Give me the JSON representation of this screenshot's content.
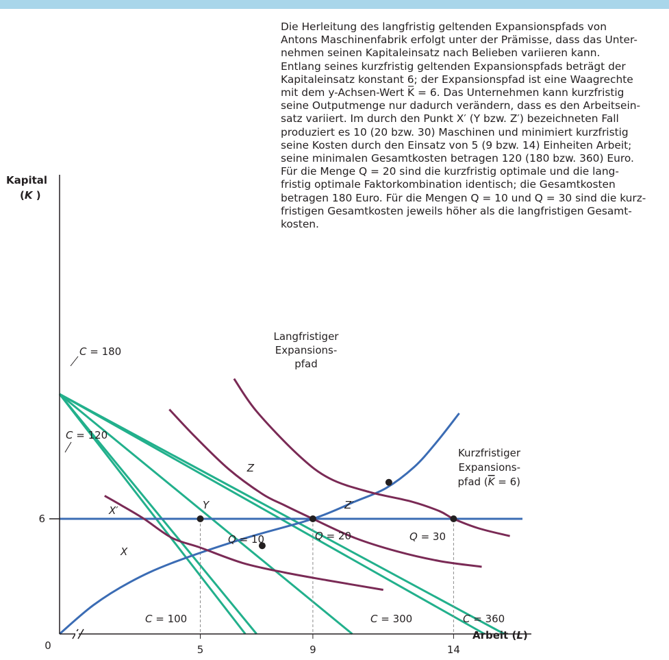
{
  "caption": {
    "lines": [
      "Die Herleitung des langfristig geltenden Expansionspfads von",
      "Antons Maschinenfabrik erfolgt unter der Prämisse, dass das Unter-",
      "nehmen seinen Kapitaleinsatz nach Belieben variieren kann.",
      "Entlang seines kurzfristig geltenden Expansionspfads beträgt der",
      "Kapitaleinsatz konstant 6; der Expansionspfad ist eine Waagrechte",
      "mit dem y-Achsen-Wert K̅ = 6. Das Unternehmen kann kurzfristig",
      "seine Outputmenge nur dadurch verändern, dass es den Arbeitsein-",
      "satz variiert. Im durch den Punkt X′ (Y bzw. Z′) bezeichneten Fall",
      "produziert es 10 (20 bzw. 30) Maschinen und minimiert kurzfristig",
      "seine Kosten durch den Einsatz von 5 (9 bzw. 14) Einheiten Arbeit;",
      "seine minimalen Gesamtkosten betragen 120 (180 bzw. 360) Euro.",
      "Für die Menge Q = 20 sind die kurzfristig optimale und die lang-",
      "fristig optimale Faktorkombination identisch; die Gesamtkosten",
      "betragen 180 Euro. Für die Mengen Q = 10 und Q = 30 sind die kurz-",
      "fristigen Gesamtkosten jeweils höher als die langfristigen Gesamt-",
      "kosten."
    ]
  },
  "colors": {
    "top_band": "#a9d6ea",
    "isocost": "#22b08c",
    "isoquant": "#7a2a55",
    "expansion_path": "#3b6cb4",
    "axis": "#231f20",
    "dashed": "#8a8a8a"
  },
  "chart_data": {
    "type": "line",
    "xlabel": "Arbeit (L)",
    "ylabel": "Kapital (K)",
    "x_ticks": [
      "0",
      "5",
      "9",
      "14"
    ],
    "y_ticks": [
      "6"
    ],
    "xlim": [
      0,
      21
    ],
    "ylim": [
      0,
      14.8
    ],
    "axis_break_on_x": true,
    "isocost_lines": [
      {
        "label": "C = 100",
        "x_intercept": 6.6,
        "y_intercept": 12.5
      },
      {
        "label": "C = 120",
        "x_intercept": 7.0,
        "y_intercept": 12.5
      },
      {
        "label": "C = 180",
        "x_intercept": 10.4,
        "y_intercept": 12.5
      },
      {
        "label": "C = 300",
        "x_intercept": 15.1,
        "y_intercept": 12.5
      },
      {
        "label": "C = 360",
        "x_intercept": 15.8,
        "y_intercept": 12.5
      }
    ],
    "isoquants": [
      {
        "label": "Q = 10",
        "x": [
          1.6,
          2.2,
          3.0,
          4.0,
          5.0,
          6.5,
          8.0,
          9.5,
          11.5
        ],
        "y": [
          7.2,
          6.7,
          6.0,
          5.0,
          4.5,
          3.7,
          3.2,
          2.8,
          2.3
        ]
      },
      {
        "label": "Q = 20",
        "x": [
          3.9,
          4.8,
          6.0,
          7.2,
          8.0,
          9.0,
          10.5,
          12.0,
          13.5,
          15.0
        ],
        "y": [
          11.7,
          10.3,
          8.6,
          7.3,
          6.7,
          6.0,
          5.0,
          4.3,
          3.8,
          3.5
        ]
      },
      {
        "label": "Q = 30",
        "x": [
          6.2,
          7.0,
          8.5,
          9.6,
          11.0,
          12.5,
          13.5,
          14.0,
          14.9,
          16.0
        ],
        "y": [
          13.3,
          11.6,
          9.3,
          8.1,
          7.4,
          6.9,
          6.4,
          6.0,
          5.5,
          5.1
        ]
      }
    ],
    "long_run_expansion_path": {
      "label": "Langfristiger Expansionspfad",
      "x": [
        0,
        1.2,
        2.5,
        4.0,
        6.5,
        9.0,
        10.5,
        11.6,
        12.6,
        13.4,
        14.2
      ],
      "y": [
        0,
        1.5,
        2.7,
        3.7,
        4.95,
        6.0,
        6.9,
        7.6,
        8.7,
        10.0,
        11.5
      ]
    },
    "short_run_expansion_path": {
      "label": "Kurzfristiger Expansionspfad (K̅ = 6)",
      "y": 6,
      "x_range": [
        0,
        21
      ]
    },
    "points": [
      {
        "label": "X′",
        "x": 5,
        "y": 6
      },
      {
        "label": "X",
        "x": 7.2,
        "y": 4.6
      },
      {
        "label": "Y",
        "x": 9,
        "y": 6
      },
      {
        "label": "Z",
        "x": 11.7,
        "y": 7.9
      },
      {
        "label": "Z′",
        "x": 14,
        "y": 6
      }
    ],
    "dashed_guides_x": [
      5,
      9,
      14
    ]
  }
}
